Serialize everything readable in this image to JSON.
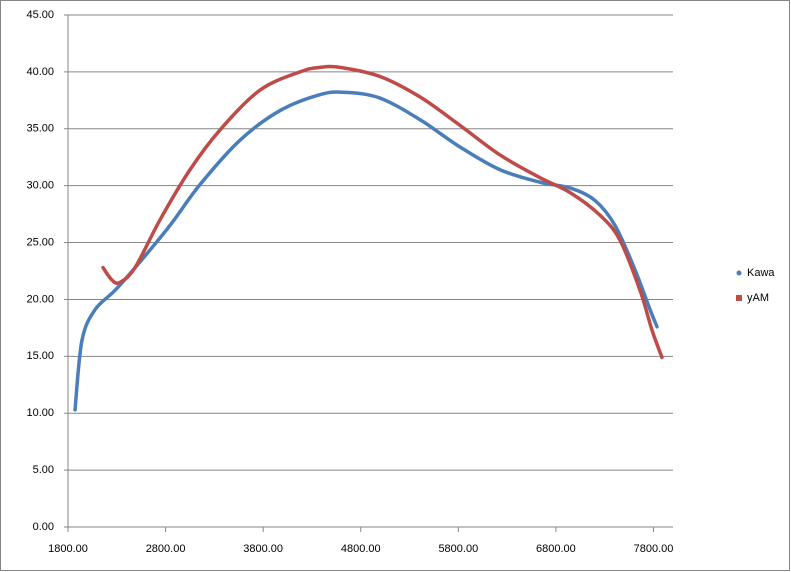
{
  "chart_data": {
    "type": "line",
    "xlim": [
      1800,
      8000
    ],
    "xticks": [
      {
        "value": 1800,
        "label": "1800.00"
      },
      {
        "value": 2800,
        "label": "2800.00"
      },
      {
        "value": 3800,
        "label": "3800.00"
      },
      {
        "value": 4800,
        "label": "4800.00"
      },
      {
        "value": 5800,
        "label": "5800.00"
      },
      {
        "value": 6800,
        "label": "6800.00"
      },
      {
        "value": 7800,
        "label": "7800.00"
      }
    ],
    "ylim": [
      0,
      45
    ],
    "yticks": [
      {
        "value": 0,
        "label": "0.00"
      },
      {
        "value": 5,
        "label": "5.00"
      },
      {
        "value": 10,
        "label": "10.00"
      },
      {
        "value": 15,
        "label": "15.00"
      },
      {
        "value": 20,
        "label": "20.00"
      },
      {
        "value": 25,
        "label": "25.00"
      },
      {
        "value": 30,
        "label": "30.00"
      },
      {
        "value": 35,
        "label": "35.00"
      },
      {
        "value": 40,
        "label": "40.00"
      },
      {
        "value": 45,
        "label": "45.00"
      }
    ],
    "grid": true,
    "legend": "right",
    "series": [
      {
        "name": "Kawa",
        "color": "#4a7ebb",
        "x": [
          1872,
          1943,
          2077,
          2282,
          2538,
          2845,
          3153,
          3563,
          3973,
          4382,
          4639,
          4997,
          5407,
          5817,
          6227,
          6637,
          6944,
          7200,
          7406,
          7611,
          7765,
          7836
        ],
        "values": [
          10.3,
          16.4,
          19.1,
          20.8,
          23.3,
          26.5,
          30.1,
          34.0,
          36.6,
          38.0,
          38.2,
          37.7,
          35.8,
          33.4,
          31.4,
          30.3,
          29.8,
          28.7,
          26.5,
          22.6,
          19.1,
          17.6
        ]
      },
      {
        "name": "yAM",
        "color": "#be4b48",
        "x": [
          2159,
          2251,
          2333,
          2487,
          2743,
          3050,
          3358,
          3768,
          4178,
          4382,
          4587,
          4997,
          5407,
          5817,
          6227,
          6637,
          6944,
          7252,
          7457,
          7662,
          7785,
          7887
        ],
        "values": [
          22.8,
          21.7,
          21.5,
          22.8,
          27.0,
          31.4,
          34.9,
          38.4,
          40.0,
          40.4,
          40.4,
          39.6,
          37.8,
          35.3,
          32.7,
          30.7,
          29.4,
          27.4,
          25.2,
          20.8,
          17.3,
          14.9
        ]
      }
    ]
  }
}
